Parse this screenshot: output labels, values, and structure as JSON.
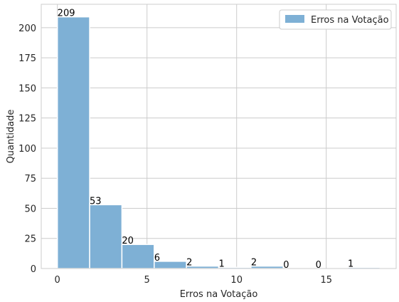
{
  "chart_data": {
    "type": "bar",
    "subtype": "histogram",
    "bin_edges": [
      0,
      1.8,
      3.6,
      5.4,
      7.2,
      9.0,
      10.8,
      12.6,
      14.4,
      16.2,
      18.0
    ],
    "values": [
      209,
      53,
      20,
      6,
      2,
      1,
      2,
      0,
      0,
      1
    ],
    "series": [
      {
        "name": "Erros na Votação",
        "values": [
          209,
          53,
          20,
          6,
          2,
          1,
          2,
          0,
          0,
          1
        ]
      }
    ],
    "xlabel": "Erros na Votação",
    "ylabel": "Quantidade",
    "xlim": [
      -0.9,
      18.9
    ],
    "ylim": [
      0,
      219.45
    ],
    "xticks": [
      0,
      5,
      10,
      15
    ],
    "xtick_labels": [
      "0",
      "5",
      "10",
      "15"
    ],
    "yticks": [
      0,
      25,
      50,
      75,
      100,
      125,
      150,
      175,
      200
    ],
    "ytick_labels": [
      "0",
      "25",
      "50",
      "75",
      "100",
      "125",
      "150",
      "175",
      "200"
    ],
    "grid": true,
    "legend_position": "top-right",
    "bar_color": "#7eb0d5"
  }
}
